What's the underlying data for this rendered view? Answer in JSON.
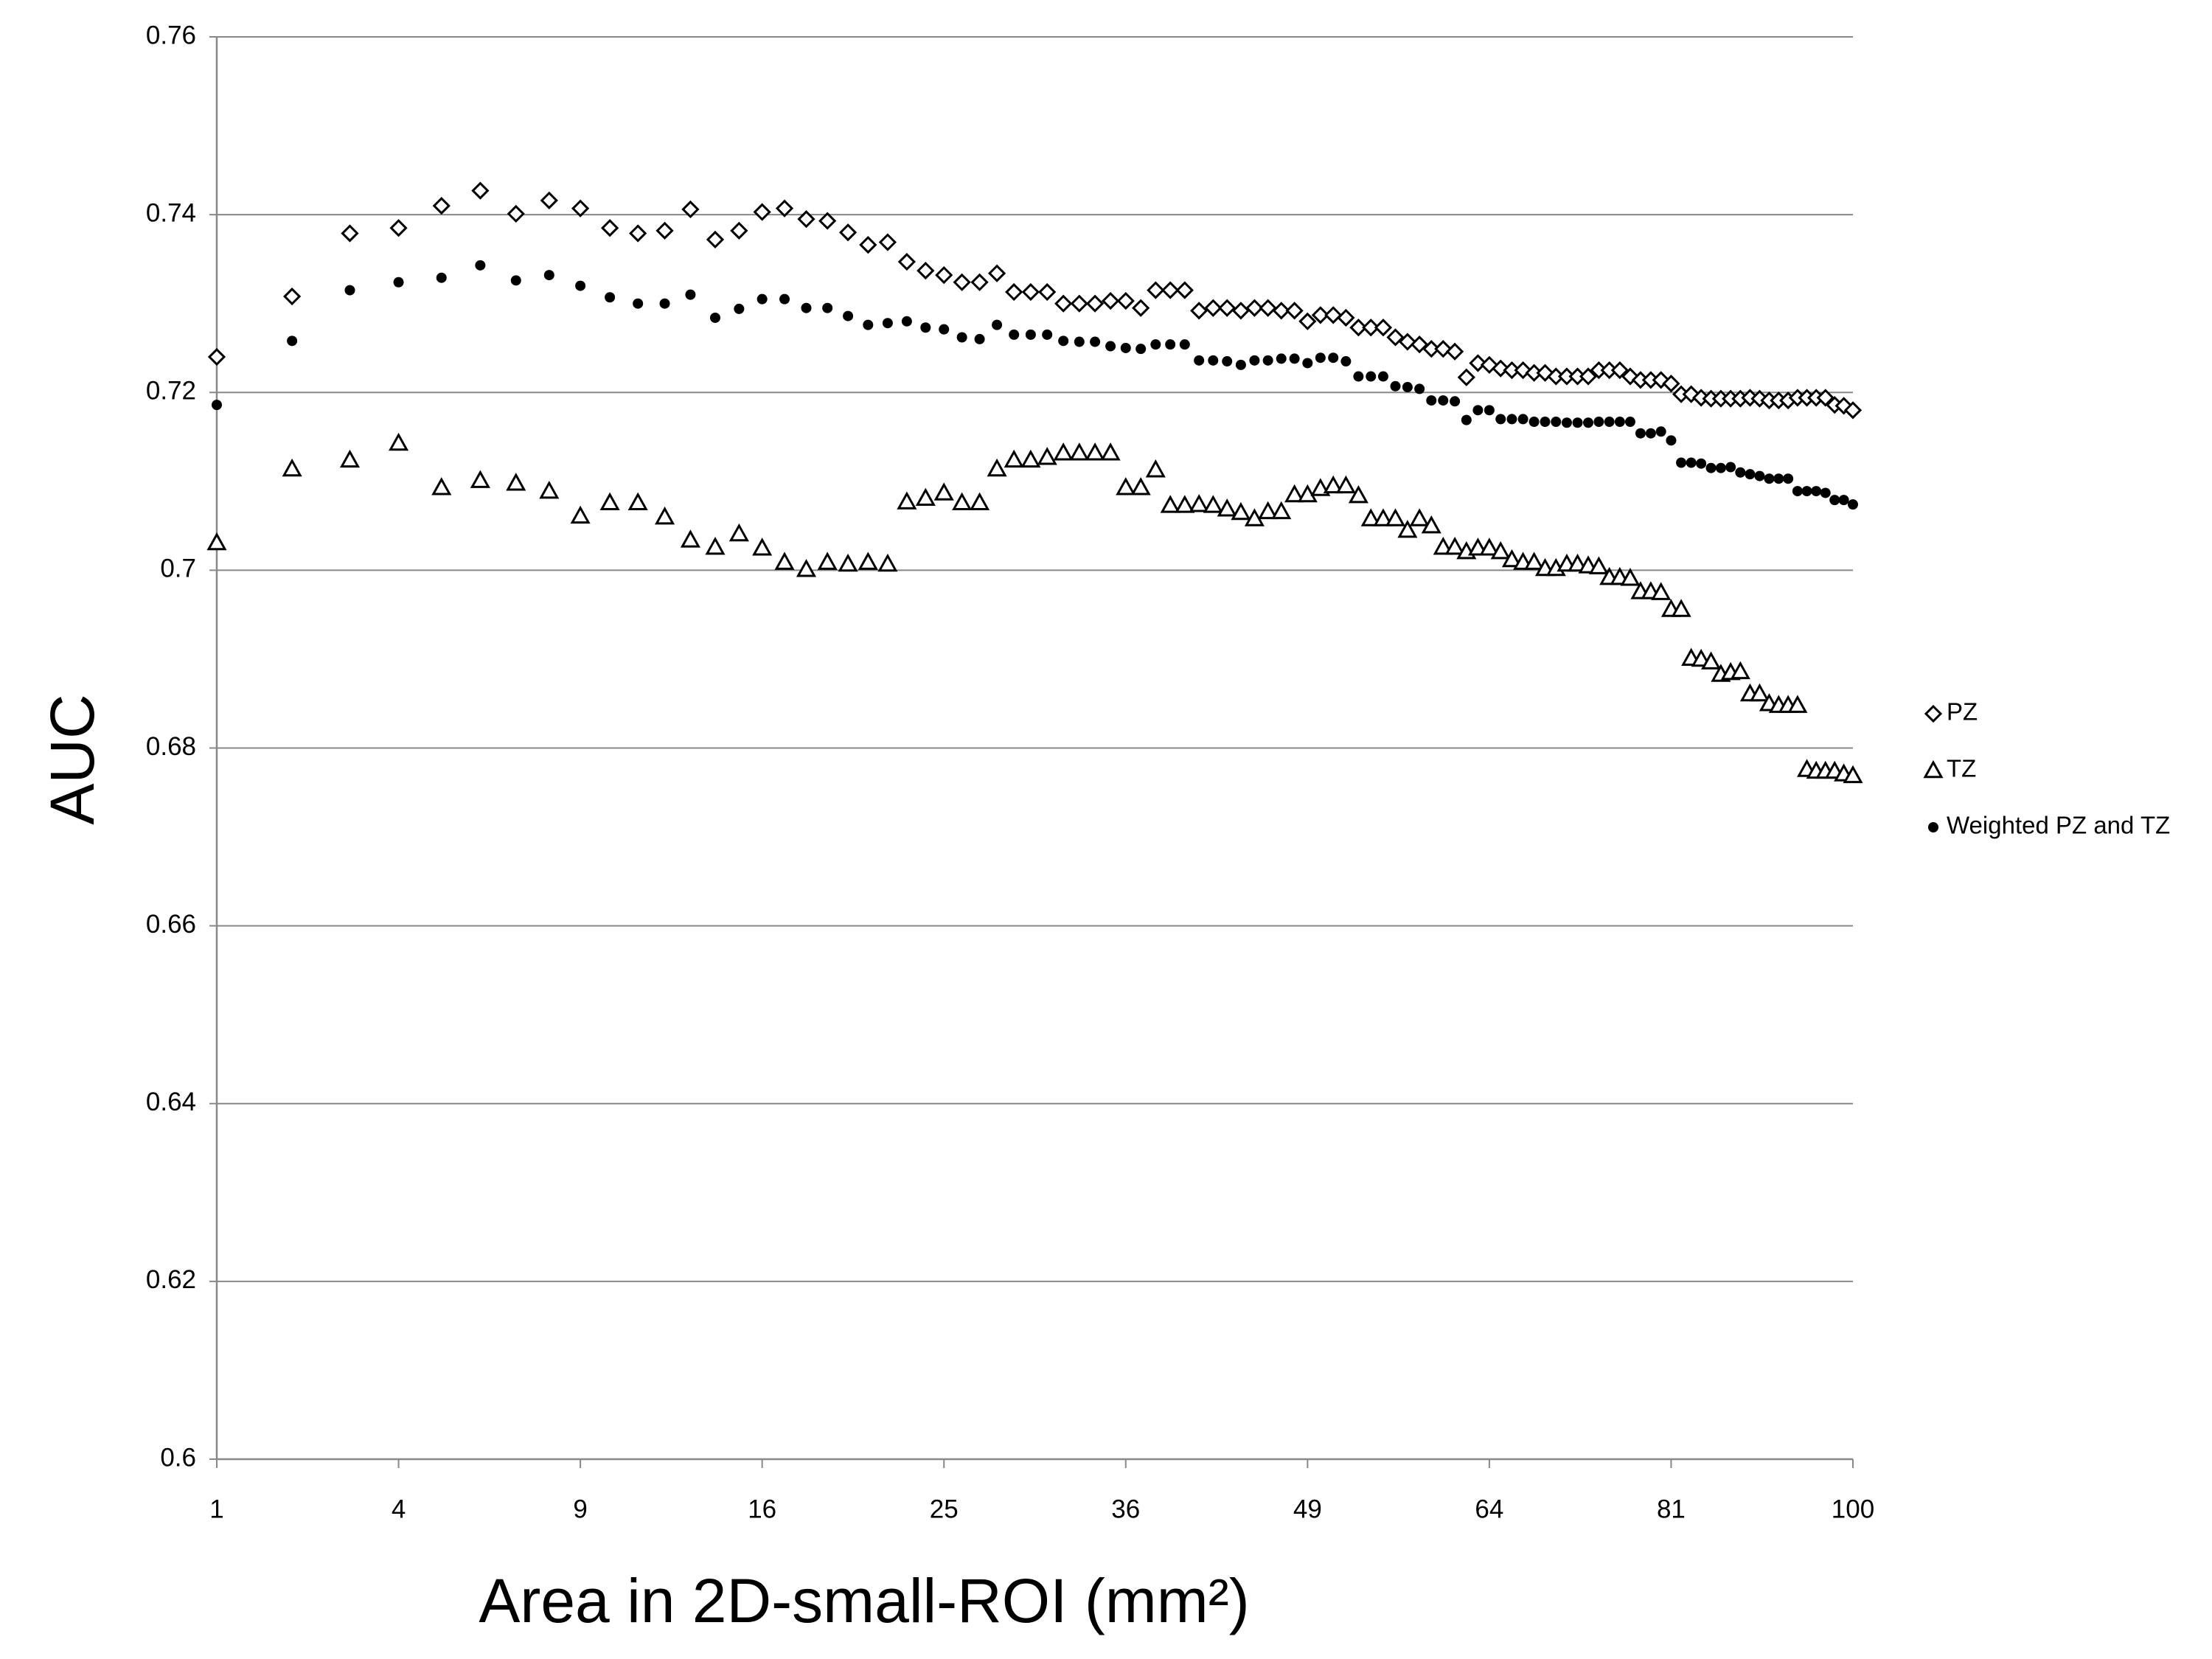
{
  "chart_data": {
    "type": "scatter",
    "y_label": "AUC",
    "x_label": "Area in 2D-small-ROI (mm²)",
    "x_scale": "sqrt",
    "xlim": [
      1,
      100
    ],
    "xticks": [
      1,
      4,
      9,
      16,
      25,
      36,
      49,
      64,
      81,
      100
    ],
    "ylim": [
      0.6,
      0.76
    ],
    "yticks": [
      0.6,
      0.62,
      0.64,
      0.66,
      0.68,
      0.7,
      0.72,
      0.74,
      0.76
    ],
    "grid": true,
    "legend": "right",
    "x": [
      1,
      2,
      3,
      4,
      5,
      6,
      7,
      8,
      9,
      10,
      11,
      12,
      13,
      14,
      15,
      16,
      17,
      18,
      19,
      20,
      21,
      22,
      23,
      24,
      25,
      26,
      27,
      28,
      29,
      30,
      31,
      32,
      33,
      34,
      35,
      36,
      37,
      38,
      39,
      40,
      41,
      42,
      43,
      44,
      45,
      46,
      47,
      48,
      49,
      50,
      51,
      52,
      53,
      54,
      55,
      56,
      57,
      58,
      59,
      60,
      61,
      62,
      63,
      64,
      65,
      66,
      67,
      68,
      69,
      70,
      71,
      72,
      73,
      74,
      75,
      76,
      77,
      78,
      79,
      80,
      81,
      82,
      83,
      84,
      85,
      86,
      87,
      88,
      89,
      90,
      91,
      92,
      93,
      94,
      95,
      96,
      97,
      98,
      99,
      100
    ],
    "series": [
      {
        "name": "PZ",
        "color": "#000000",
        "marker": "diamond",
        "values": [
          0.724,
          0.7308,
          0.7379,
          0.7385,
          0.741,
          0.7427,
          0.7401,
          0.7416,
          0.7407,
          0.7385,
          0.7379,
          0.7382,
          0.7406,
          0.7372,
          0.7382,
          0.7403,
          0.7407,
          0.7395,
          0.7393,
          0.738,
          0.7366,
          0.7369,
          0.7347,
          0.7337,
          0.7332,
          0.7324,
          0.7324,
          0.7334,
          0.7313,
          0.7313,
          0.7313,
          0.73,
          0.73,
          0.73,
          0.7303,
          0.7303,
          0.7295,
          0.7315,
          0.7315,
          0.7315,
          0.7292,
          0.7295,
          0.7295,
          0.7292,
          0.7295,
          0.7295,
          0.7292,
          0.7292,
          0.728,
          0.7287,
          0.7287,
          0.7284,
          0.7273,
          0.7273,
          0.7273,
          0.7262,
          0.7257,
          0.7254,
          0.7249,
          0.7249,
          0.7246,
          0.7217,
          0.7233,
          0.7231,
          0.7227,
          0.7225,
          0.7225,
          0.7222,
          0.7222,
          0.7218,
          0.7218,
          0.7218,
          0.7218,
          0.7225,
          0.7225,
          0.7225,
          0.7218,
          0.7214,
          0.7214,
          0.7214,
          0.721,
          0.7198,
          0.7198,
          0.7194,
          0.7193,
          0.7193,
          0.7193,
          0.7193,
          0.7194,
          0.7193,
          0.7191,
          0.7191,
          0.7191,
          0.7194,
          0.7194,
          0.7194,
          0.7194,
          0.7186,
          0.7185,
          0.718
        ]
      },
      {
        "name": "TZ",
        "color": "#000000",
        "marker": "triangle",
        "values": [
          0.7031,
          0.7114,
          0.7124,
          0.7143,
          0.7093,
          0.7101,
          0.7098,
          0.7089,
          0.7061,
          0.7076,
          0.7076,
          0.706,
          0.7034,
          0.7026,
          0.7041,
          0.7025,
          0.7009,
          0.7001,
          0.7009,
          0.7007,
          0.7009,
          0.7007,
          0.7077,
          0.7081,
          0.7087,
          0.7076,
          0.7076,
          0.7114,
          0.7124,
          0.7124,
          0.7127,
          0.7132,
          0.7132,
          0.7132,
          0.7132,
          0.7093,
          0.7093,
          0.7113,
          0.7073,
          0.7073,
          0.7074,
          0.7073,
          0.7069,
          0.7065,
          0.7058,
          0.7066,
          0.7066,
          0.7085,
          0.7085,
          0.7092,
          0.7095,
          0.7095,
          0.7084,
          0.7058,
          0.7058,
          0.7058,
          0.7045,
          0.7058,
          0.705,
          0.7026,
          0.7026,
          0.7021,
          0.7025,
          0.7025,
          0.7021,
          0.7012,
          0.7009,
          0.7009,
          0.7002,
          0.7002,
          0.7007,
          0.7007,
          0.7005,
          0.7004,
          0.6992,
          0.6992,
          0.6991,
          0.6976,
          0.6976,
          0.6975,
          0.6956,
          0.6956,
          0.6901,
          0.69,
          0.6897,
          0.6883,
          0.6885,
          0.6886,
          0.6861,
          0.6861,
          0.685,
          0.6848,
          0.6848,
          0.6848,
          0.6776,
          0.6774,
          0.6774,
          0.6774,
          0.6771,
          0.6769
        ]
      },
      {
        "name": "Weighted PZ and TZ",
        "color": "#000000",
        "marker": "circle",
        "values": [
          0.7186,
          0.7258,
          0.7315,
          0.7324,
          0.7329,
          0.7343,
          0.7326,
          0.7332,
          0.732,
          0.7307,
          0.73,
          0.73,
          0.731,
          0.7284,
          0.7294,
          0.7305,
          0.7305,
          0.7295,
          0.7295,
          0.7286,
          0.7276,
          0.7278,
          0.728,
          0.7273,
          0.7271,
          0.7262,
          0.726,
          0.7276,
          0.7265,
          0.7265,
          0.7265,
          0.7258,
          0.7257,
          0.7257,
          0.7252,
          0.725,
          0.7249,
          0.7254,
          0.7254,
          0.7254,
          0.7236,
          0.7236,
          0.7235,
          0.7231,
          0.7236,
          0.7236,
          0.7238,
          0.7238,
          0.7233,
          0.7239,
          0.7239,
          0.7235,
          0.7218,
          0.7218,
          0.7218,
          0.7207,
          0.7206,
          0.7204,
          0.7191,
          0.7191,
          0.719,
          0.7169,
          0.718,
          0.718,
          0.717,
          0.717,
          0.717,
          0.7167,
          0.7167,
          0.7167,
          0.7166,
          0.7166,
          0.7166,
          0.7167,
          0.7167,
          0.7167,
          0.7167,
          0.7154,
          0.7154,
          0.7156,
          0.7146,
          0.7121,
          0.7121,
          0.712,
          0.7115,
          0.7115,
          0.7116,
          0.711,
          0.7108,
          0.7106,
          0.7103,
          0.7103,
          0.7103,
          0.7089,
          0.7089,
          0.7089,
          0.7087,
          0.7079,
          0.7079,
          0.7074
        ]
      }
    ]
  }
}
